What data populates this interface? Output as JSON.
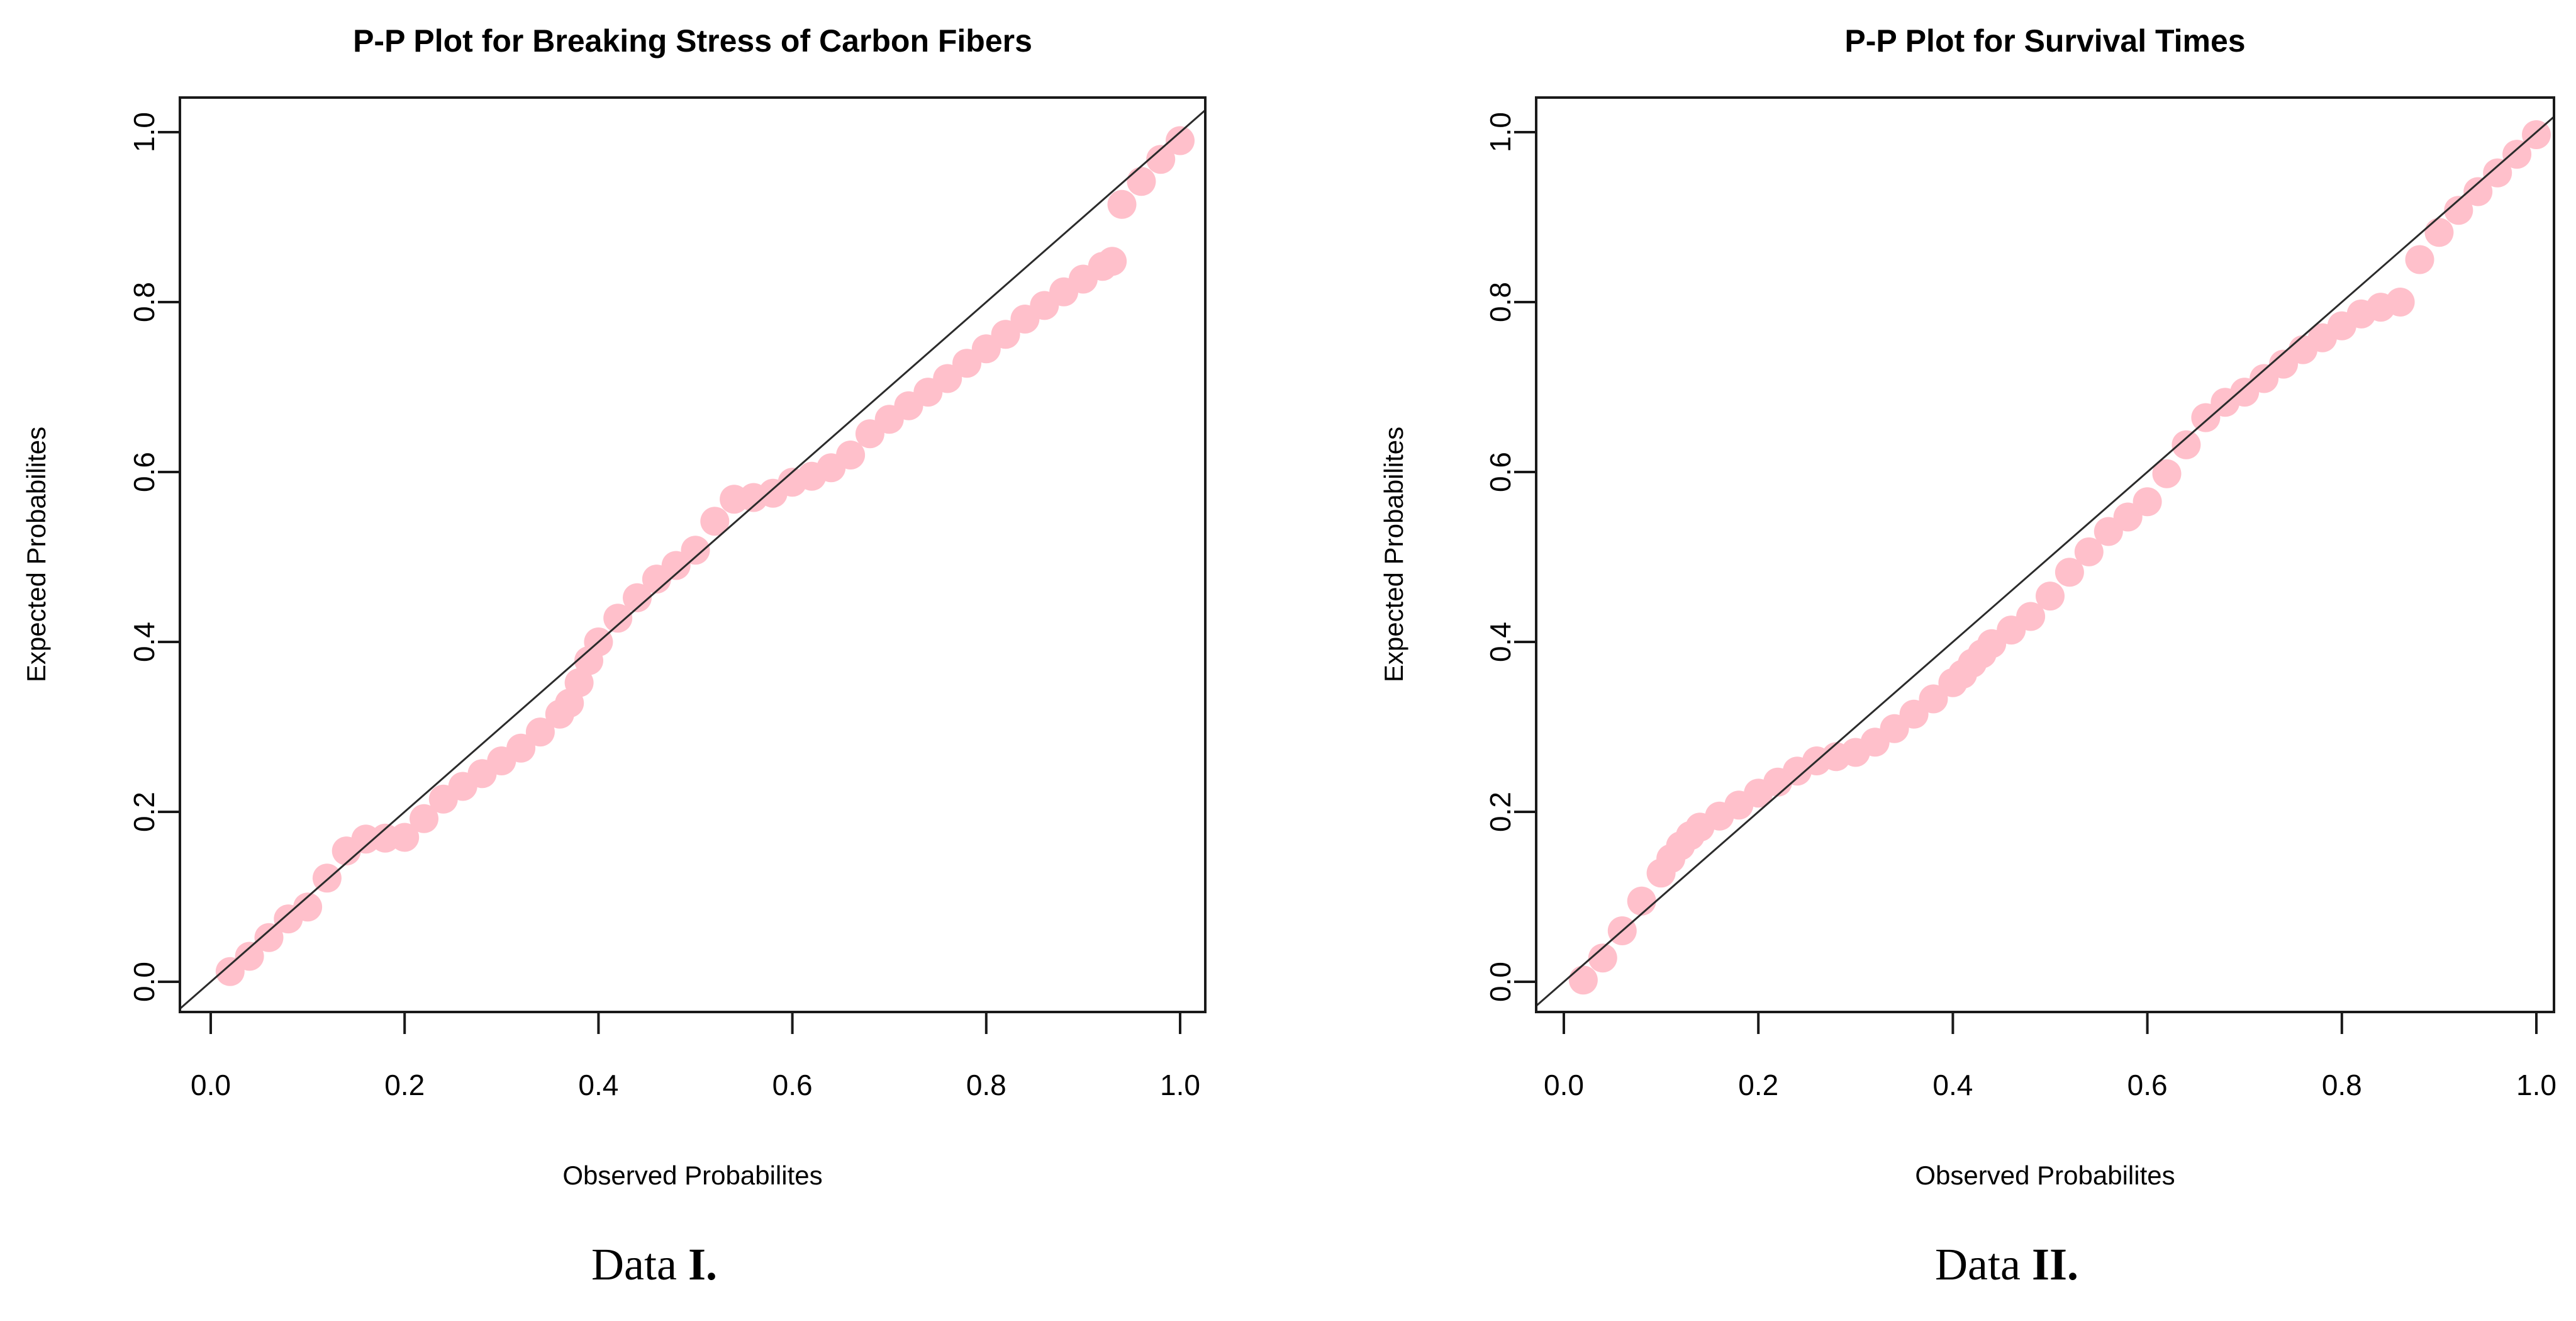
{
  "page": {
    "background": "#ffffff",
    "text_color": "#000000"
  },
  "captions": {
    "left": {
      "word": "Data",
      "numeral": "I."
    },
    "right": {
      "word": "Data",
      "numeral": "II."
    }
  },
  "chart_data": [
    {
      "type": "scatter",
      "title": "P-P Plot for Breaking Stress of Carbon Fibers",
      "xlabel": "Observed Probabilites",
      "ylabel": "Expected Probabilites",
      "xlim": [
        0,
        1
      ],
      "ylim": [
        0,
        1
      ],
      "ticks": [
        0,
        0.2,
        0.4,
        0.6,
        0.8,
        1.0
      ],
      "xtick_labels": [
        "0.0",
        "0.2",
        "0.4",
        "0.6",
        "0.8",
        "1.0"
      ],
      "ytick_labels": [
        "0.0",
        "0.2",
        "0.4",
        "0.6",
        "0.8",
        "1.0"
      ],
      "grid": false,
      "legend": "none",
      "reference_line": "identity y = x",
      "marker_color": "#ffc0cb",
      "line_color": "#2b2b2b",
      "axis_color": "#1a1a1a",
      "points": [
        [
          0.02,
          0.012
        ],
        [
          0.04,
          0.03
        ],
        [
          0.06,
          0.052
        ],
        [
          0.08,
          0.074
        ],
        [
          0.1,
          0.088
        ],
        [
          0.12,
          0.122
        ],
        [
          0.14,
          0.154
        ],
        [
          0.16,
          0.168
        ],
        [
          0.18,
          0.169
        ],
        [
          0.2,
          0.17
        ],
        [
          0.22,
          0.192
        ],
        [
          0.24,
          0.215
        ],
        [
          0.26,
          0.23
        ],
        [
          0.28,
          0.245
        ],
        [
          0.3,
          0.26
        ],
        [
          0.32,
          0.275
        ],
        [
          0.34,
          0.294
        ],
        [
          0.36,
          0.315
        ],
        [
          0.37,
          0.328
        ],
        [
          0.38,
          0.352
        ],
        [
          0.39,
          0.378
        ],
        [
          0.4,
          0.4
        ],
        [
          0.42,
          0.428
        ],
        [
          0.44,
          0.452
        ],
        [
          0.46,
          0.474
        ],
        [
          0.48,
          0.49
        ],
        [
          0.5,
          0.508
        ],
        [
          0.52,
          0.542
        ],
        [
          0.54,
          0.568
        ],
        [
          0.56,
          0.57
        ],
        [
          0.58,
          0.575
        ],
        [
          0.6,
          0.588
        ],
        [
          0.62,
          0.595
        ],
        [
          0.64,
          0.605
        ],
        [
          0.66,
          0.62
        ],
        [
          0.68,
          0.645
        ],
        [
          0.7,
          0.662
        ],
        [
          0.72,
          0.678
        ],
        [
          0.74,
          0.694
        ],
        [
          0.76,
          0.71
        ],
        [
          0.78,
          0.728
        ],
        [
          0.8,
          0.745
        ],
        [
          0.82,
          0.762
        ],
        [
          0.84,
          0.78
        ],
        [
          0.86,
          0.796
        ],
        [
          0.88,
          0.812
        ],
        [
          0.9,
          0.827
        ],
        [
          0.92,
          0.842
        ],
        [
          0.93,
          0.848
        ],
        [
          0.94,
          0.915
        ],
        [
          0.96,
          0.942
        ],
        [
          0.98,
          0.968
        ],
        [
          1.0,
          0.99
        ]
      ]
    },
    {
      "type": "scatter",
      "title": "P-P Plot for Survival Times",
      "xlabel": "Observed Probabilites",
      "ylabel": "Expected Probabilites",
      "xlim": [
        0,
        1
      ],
      "ylim": [
        0,
        1
      ],
      "ticks": [
        0,
        0.2,
        0.4,
        0.6,
        0.8,
        1.0
      ],
      "xtick_labels": [
        "0.0",
        "0.2",
        "0.4",
        "0.6",
        "0.8",
        "1.0"
      ],
      "ytick_labels": [
        "0.0",
        "0.2",
        "0.4",
        "0.6",
        "0.8",
        "1.0"
      ],
      "grid": false,
      "legend": "none",
      "reference_line": "identity y = x",
      "marker_color": "#ffc0cb",
      "line_color": "#2b2b2b",
      "axis_color": "#1a1a1a",
      "points": [
        [
          0.02,
          0.002
        ],
        [
          0.04,
          0.028
        ],
        [
          0.06,
          0.06
        ],
        [
          0.08,
          0.095
        ],
        [
          0.1,
          0.128
        ],
        [
          0.11,
          0.145
        ],
        [
          0.12,
          0.16
        ],
        [
          0.13,
          0.172
        ],
        [
          0.14,
          0.182
        ],
        [
          0.16,
          0.195
        ],
        [
          0.18,
          0.208
        ],
        [
          0.2,
          0.222
        ],
        [
          0.22,
          0.235
        ],
        [
          0.24,
          0.248
        ],
        [
          0.26,
          0.26
        ],
        [
          0.28,
          0.265
        ],
        [
          0.3,
          0.27
        ],
        [
          0.32,
          0.282
        ],
        [
          0.34,
          0.298
        ],
        [
          0.36,
          0.315
        ],
        [
          0.38,
          0.333
        ],
        [
          0.4,
          0.352
        ],
        [
          0.41,
          0.362
        ],
        [
          0.42,
          0.375
        ],
        [
          0.43,
          0.386
        ],
        [
          0.44,
          0.398
        ],
        [
          0.46,
          0.414
        ],
        [
          0.48,
          0.43
        ],
        [
          0.5,
          0.454
        ],
        [
          0.52,
          0.482
        ],
        [
          0.54,
          0.506
        ],
        [
          0.56,
          0.53
        ],
        [
          0.58,
          0.547
        ],
        [
          0.6,
          0.565
        ],
        [
          0.62,
          0.598
        ],
        [
          0.64,
          0.632
        ],
        [
          0.66,
          0.664
        ],
        [
          0.68,
          0.682
        ],
        [
          0.7,
          0.694
        ],
        [
          0.72,
          0.71
        ],
        [
          0.74,
          0.727
        ],
        [
          0.76,
          0.744
        ],
        [
          0.78,
          0.758
        ],
        [
          0.8,
          0.772
        ],
        [
          0.82,
          0.786
        ],
        [
          0.84,
          0.794
        ],
        [
          0.86,
          0.8
        ],
        [
          0.88,
          0.85
        ],
        [
          0.9,
          0.882
        ],
        [
          0.92,
          0.908
        ],
        [
          0.94,
          0.93
        ],
        [
          0.96,
          0.952
        ],
        [
          0.98,
          0.974
        ],
        [
          1.0,
          0.997
        ]
      ]
    }
  ]
}
